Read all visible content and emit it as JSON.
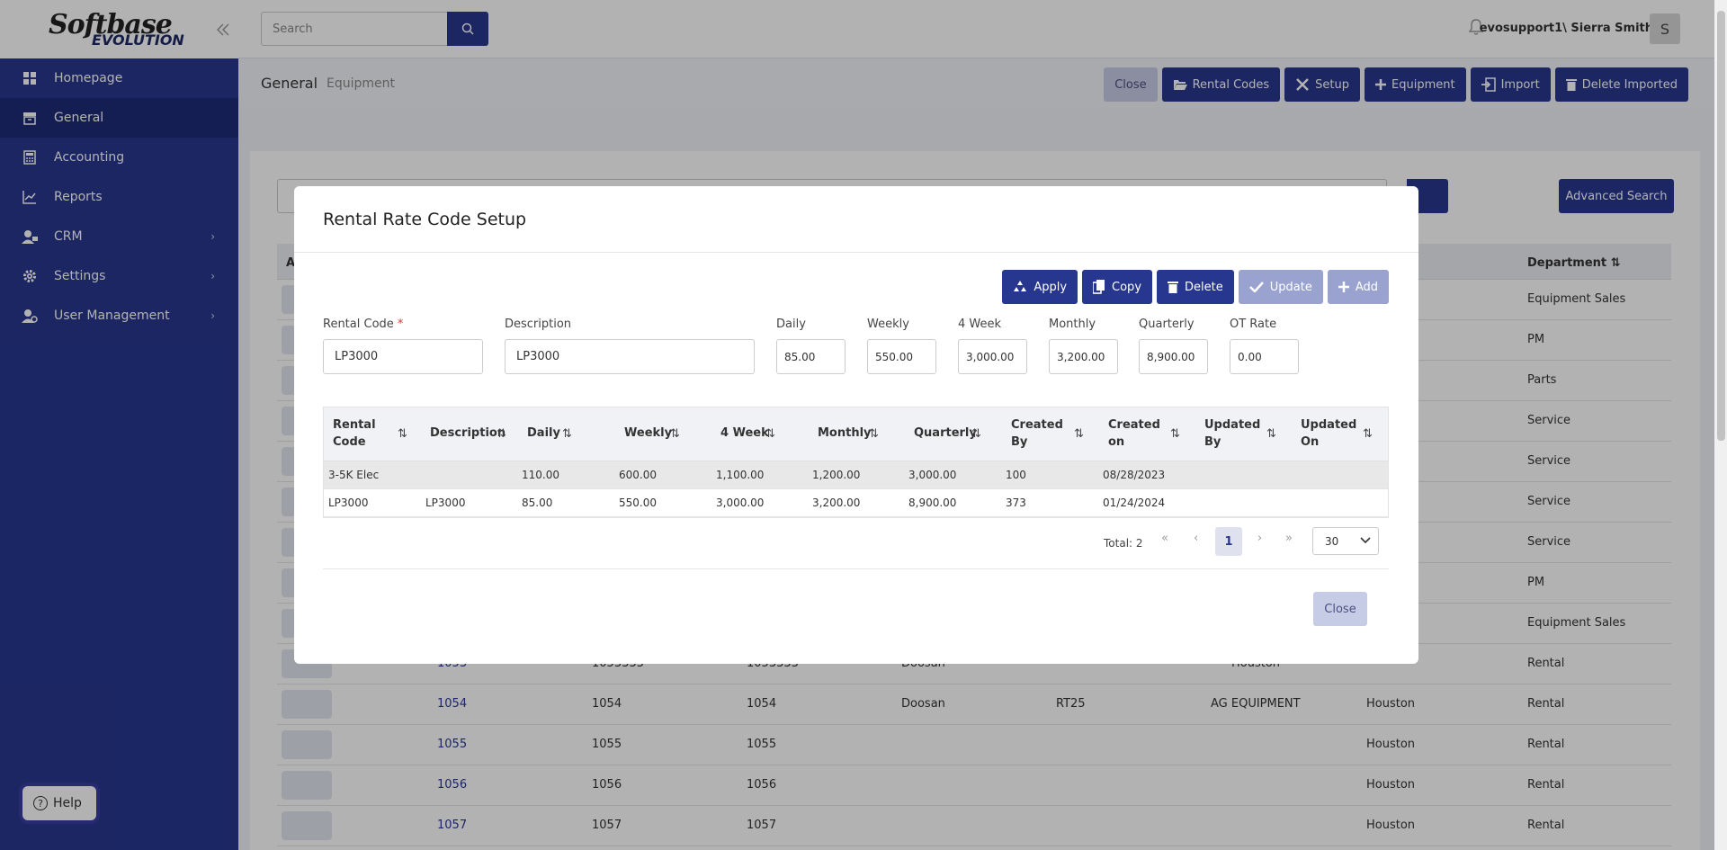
{
  "brand": {
    "line1": "Softbase",
    "line2": "EVOLUTION"
  },
  "sidebar": {
    "items": [
      {
        "label": "Homepage"
      },
      {
        "label": "General"
      },
      {
        "label": "Accounting"
      },
      {
        "label": "Reports"
      },
      {
        "label": "CRM"
      },
      {
        "label": "Settings"
      },
      {
        "label": "User Management"
      }
    ],
    "help_label": "Help"
  },
  "topbar": {
    "search_placeholder": "Search",
    "user_name": "evosupport1\\ Sierra Smith",
    "avatar_letter": "S"
  },
  "subheader": {
    "crumb": "General",
    "crumb_sub": "Equipment",
    "actions": [
      "Close",
      "Rental Codes",
      "Setup",
      "Equipment",
      "Import",
      "Delete Imported"
    ]
  },
  "background": {
    "advanced_search": "Advanced Search",
    "col_first_letter": "A",
    "col_department": "Department",
    "rows": [
      {
        "department": "Equipment Sales"
      },
      {
        "department": "PM"
      },
      {
        "department": "Parts"
      },
      {
        "department": "Service"
      },
      {
        "department": "Service"
      },
      {
        "department": "Service"
      },
      {
        "department": "Service"
      },
      {
        "department": "PM"
      },
      {
        "department": "Equipment Sales"
      },
      {
        "id": "1053",
        "c2": "1053333",
        "c3": "1053333",
        "make": "Doosan",
        "model": "",
        "dealer": "",
        "branch": "Houston",
        "department": "Rental"
      },
      {
        "id": "1054",
        "c2": "1054",
        "c3": "1054",
        "make": "Doosan",
        "model": "RT25",
        "dealer": "AG EQUIPMENT",
        "branch": "Houston",
        "department": "Rental"
      },
      {
        "id": "1055",
        "c2": "1055",
        "c3": "1055",
        "make": "",
        "model": "",
        "dealer": "",
        "branch": "Houston",
        "department": "Rental"
      },
      {
        "id": "1056",
        "c2": "1056",
        "c3": "1056",
        "make": "",
        "model": "",
        "dealer": "",
        "branch": "Houston",
        "department": "Rental"
      },
      {
        "id": "1057",
        "c2": "1057",
        "c3": "1057",
        "make": "",
        "model": "",
        "dealer": "",
        "branch": "Houston",
        "department": "Rental"
      }
    ]
  },
  "modal": {
    "title": "Rental Rate Code Setup",
    "buttons": {
      "apply": "Apply",
      "copy": "Copy",
      "delete": "Delete",
      "update": "Update",
      "add": "Add"
    },
    "fields": {
      "rental_code": {
        "label": "Rental Code",
        "required_mark": "*",
        "value": "LP3000"
      },
      "description": {
        "label": "Description",
        "value": "LP3000"
      },
      "daily": {
        "label": "Daily",
        "value": "85.00"
      },
      "weekly": {
        "label": "Weekly",
        "value": "550.00"
      },
      "four_week": {
        "label": "4 Week",
        "value": "3,000.00"
      },
      "monthly": {
        "label": "Monthly",
        "value": "3,200.00"
      },
      "quarterly": {
        "label": "Quarterly",
        "value": "8,900.00"
      },
      "ot_rate": {
        "label": "OT Rate",
        "value": "0.00"
      }
    },
    "grid": {
      "headers": [
        "Rental\nCode",
        "Description",
        "Daily",
        "Weekly",
        "4 Week",
        "Monthly",
        "Quarterly",
        "Created\nBy",
        "Created\non",
        "Updated\nBy",
        "Updated\nOn"
      ],
      "rows": [
        [
          "3-5K Elec",
          "",
          "110.00",
          "600.00",
          "1,100.00",
          "1,200.00",
          "3,000.00",
          "100",
          "08/28/2023",
          "",
          ""
        ],
        [
          "LP3000",
          "LP3000",
          "85.00",
          "550.00",
          "3,000.00",
          "3,200.00",
          "8,900.00",
          "373",
          "01/24/2024",
          "",
          ""
        ]
      ]
    },
    "pager": {
      "total": "Total: 2",
      "current_page": "1",
      "page_size": "30"
    },
    "close_label": "Close"
  }
}
